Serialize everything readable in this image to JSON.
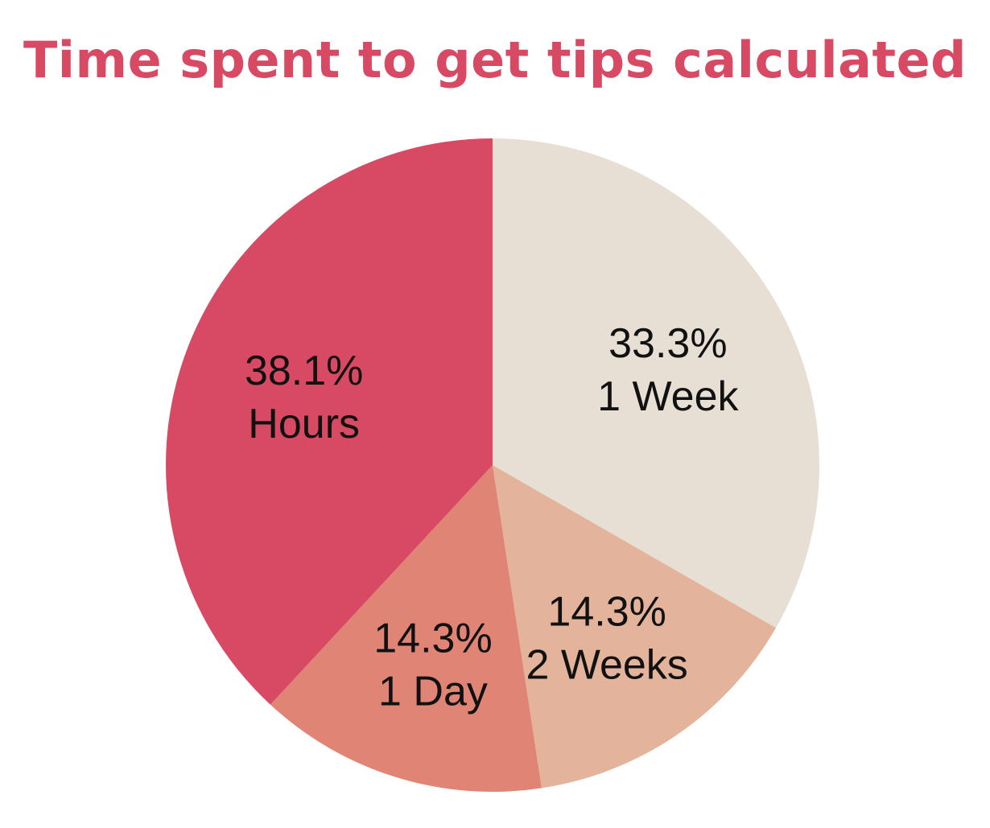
{
  "chart_data": {
    "type": "pie",
    "title": "Time spent to get tips calculated",
    "slices": [
      {
        "label": "1 Week",
        "value": 33.3,
        "percent_label": "33.3%",
        "color": "#e7dfd4"
      },
      {
        "label": "2 Weeks",
        "value": 14.3,
        "percent_label": "14.3%",
        "color": "#e3b49b"
      },
      {
        "label": "1 Day",
        "value": 14.3,
        "percent_label": "14.3%",
        "color": "#e08575"
      },
      {
        "label": "Hours",
        "value": 38.1,
        "percent_label": "38.1%",
        "color": "#d84a63"
      }
    ]
  }
}
